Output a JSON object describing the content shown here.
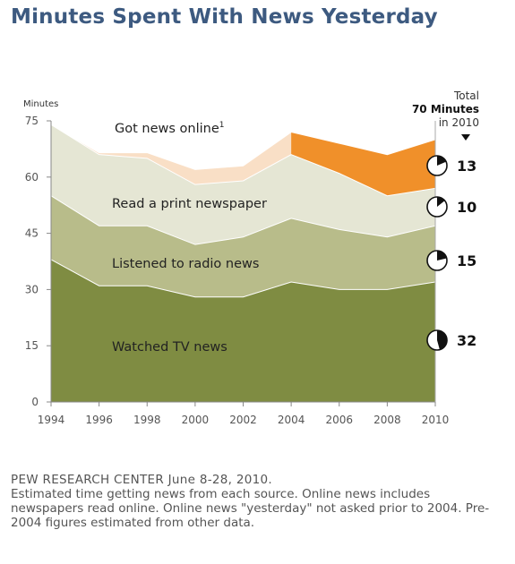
{
  "title": "Minutes Spent With News Yesterday",
  "footer": {
    "source": "PEW RESEARCH  CENTER June 8-28, 2010.",
    "note": "Estimated time getting news from each source. Online news includes newspapers read online. Online news \"yesterday\" not asked prior to 2004. Pre-2004 figures estimated from other data."
  },
  "chart_data": {
    "type": "area",
    "stacked": true,
    "ylabel": "Minutes",
    "x": [
      1994,
      1996,
      1998,
      2000,
      2002,
      2004,
      2006,
      2008,
      2010
    ],
    "ylim": [
      0,
      75
    ],
    "yticks": [
      0,
      15,
      30,
      45,
      60,
      75
    ],
    "series": [
      {
        "name": "Watched TV news",
        "values": [
          38,
          31,
          31,
          28,
          28,
          32,
          30,
          30,
          32
        ],
        "color": "#7f8c42",
        "callout": "32"
      },
      {
        "name": "Listened to radio news",
        "values": [
          17,
          16,
          16,
          14,
          16,
          17,
          16,
          14,
          15
        ],
        "color": "#b8bc8a",
        "callout": "15"
      },
      {
        "name": "Read a print newspaper",
        "values": [
          19,
          19,
          18,
          16,
          15,
          17,
          15,
          11,
          10
        ],
        "color": "#e5e6d4",
        "callout": "10"
      },
      {
        "name": "Got news online",
        "name_sup": "1",
        "values": [
          0,
          0.5,
          1.5,
          4,
          4,
          6,
          8,
          11,
          13
        ],
        "color": "#f0902a",
        "estimated_color": "#f9dfc6",
        "estimated_through": 2004,
        "callout": "13"
      }
    ],
    "total": {
      "label_line1": "Total",
      "label_line2": "70 Minutes",
      "label_line3": "in 2010"
    }
  }
}
